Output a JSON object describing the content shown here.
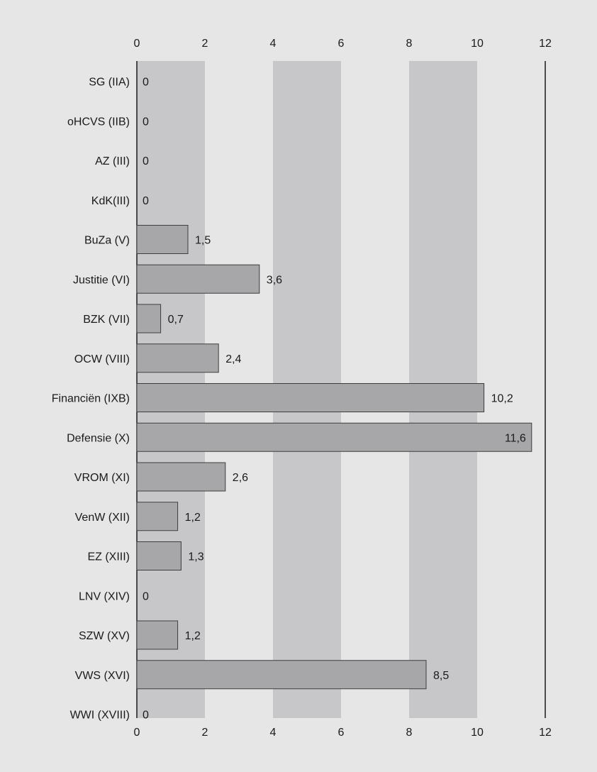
{
  "chart_data": {
    "type": "bar",
    "orientation": "horizontal",
    "categories": [
      "SG (IIA)",
      "oHCVS (IIB)",
      "AZ (III)",
      "KdK(III)",
      "BuZa (V)",
      "Justitie (VI)",
      "BZK (VII)",
      "OCW (VIII)",
      "Financiën (IXB)",
      "Defensie (X)",
      "VROM (XI)",
      "VenW (XII)",
      "EZ (XIII)",
      "LNV (XIV)",
      "SZW (XV)",
      "VWS (XVI)",
      "WWI (XVIII)"
    ],
    "values": [
      0,
      0,
      0,
      0,
      1.5,
      3.6,
      0.7,
      2.4,
      10.2,
      11.6,
      2.6,
      1.2,
      1.3,
      0,
      1.2,
      8.5,
      0
    ],
    "value_labels": [
      "0",
      "0",
      "0",
      "0",
      "1,5",
      "3,6",
      "0,7",
      "2,4",
      "10,2",
      "11,6",
      "2,6",
      "1,2",
      "1,3",
      "0",
      "1,2",
      "8,5",
      "0"
    ],
    "xlim": [
      0,
      12
    ],
    "x_ticks": [
      0,
      2,
      4,
      6,
      8,
      10,
      12
    ],
    "x_tick_labels": [
      "0",
      "2",
      "4",
      "6",
      "8",
      "10",
      "12"
    ],
    "x_axis_position": "top and bottom",
    "grid": "alternating vertical bands",
    "title": "",
    "xlabel": "",
    "ylabel": "",
    "colors": {
      "background": "#e6e6e7",
      "band": "#c7c7c9",
      "bar_fill": "#a7a7aa",
      "bar_stroke": "#3d3d3d",
      "axis": "#1a1a1a"
    }
  }
}
